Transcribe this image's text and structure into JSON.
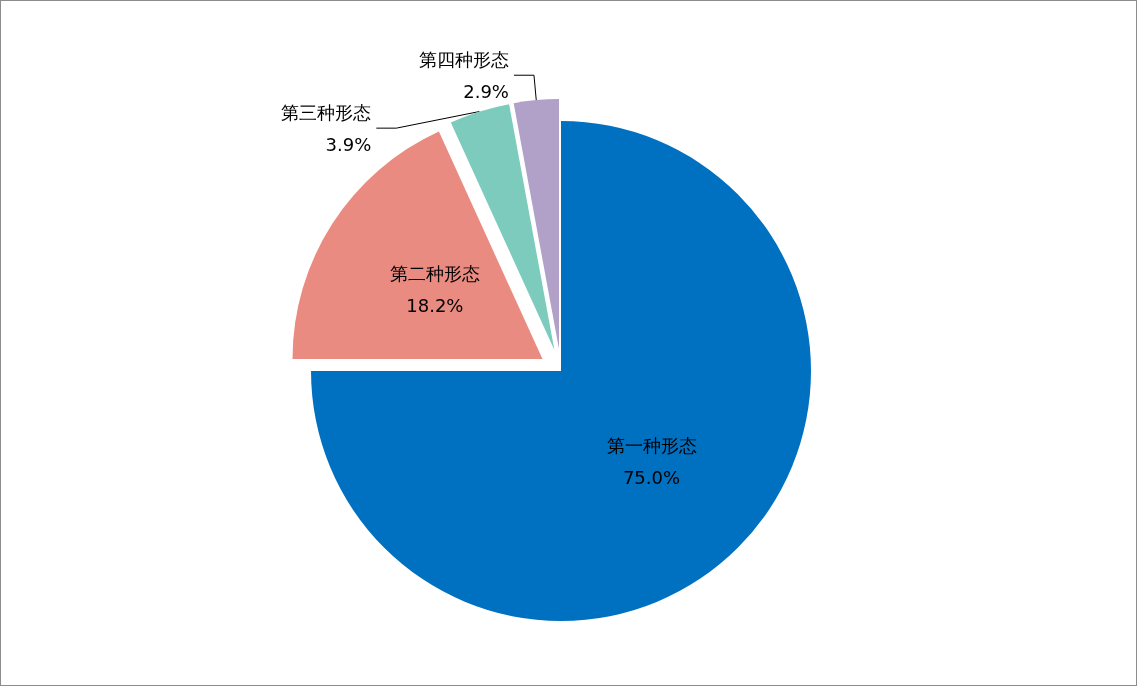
{
  "chart_data": {
    "type": "pie",
    "categories": [
      "第一种形态",
      "第二种形态",
      "第三种形态",
      "第四种形态"
    ],
    "values": [
      75.0,
      18.2,
      3.9,
      2.9
    ],
    "value_labels": [
      "75.0%",
      "18.2%",
      "3.9%",
      "2.9%"
    ],
    "colors": [
      "#0070c0",
      "#e98b81",
      "#7ccbbd",
      "#b1a0c7"
    ],
    "legend": false
  }
}
